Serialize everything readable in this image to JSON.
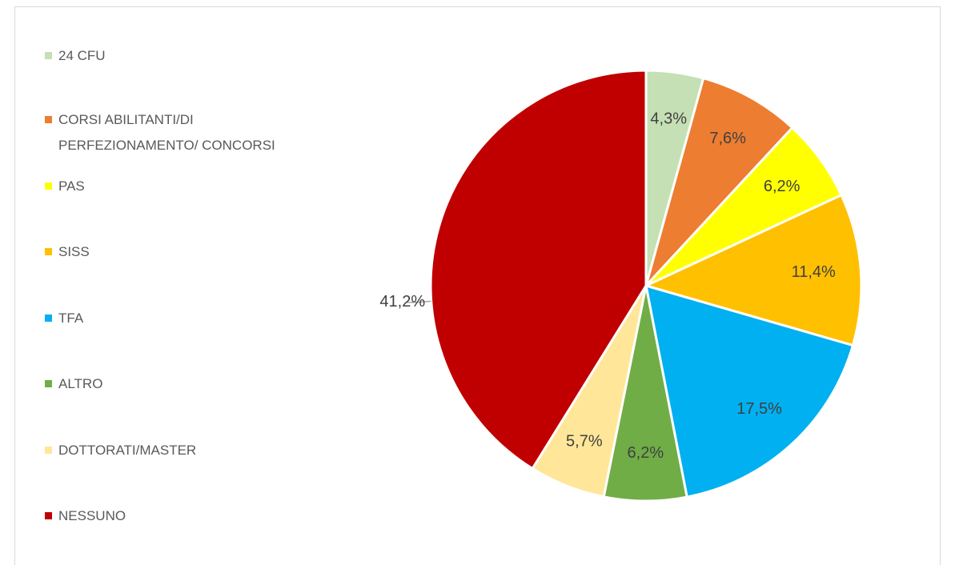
{
  "chart_data": {
    "type": "pie",
    "categories": [
      "24 CFU",
      "CORSI ABILITANTI/DI PERFEZIONAMENTO/ CONCORSI",
      "PAS",
      "SISS",
      "TFA",
      "ALTRO",
      "DOTTORATI/MASTER",
      "NESSUNO"
    ],
    "values": [
      4.3,
      7.6,
      6.2,
      11.4,
      17.5,
      6.2,
      5.7,
      41.2
    ],
    "value_labels": [
      "4,3%",
      "7,6%",
      "6,2%",
      "11,4%",
      "17,5%",
      "6,2%",
      "5,7%",
      "41,2%"
    ],
    "colors": [
      "#c5e0b4",
      "#ed7d31",
      "#ffff00",
      "#ffc000",
      "#00b0f0",
      "#70ad47",
      "#ffe699",
      "#c00000"
    ],
    "legend": "left"
  }
}
